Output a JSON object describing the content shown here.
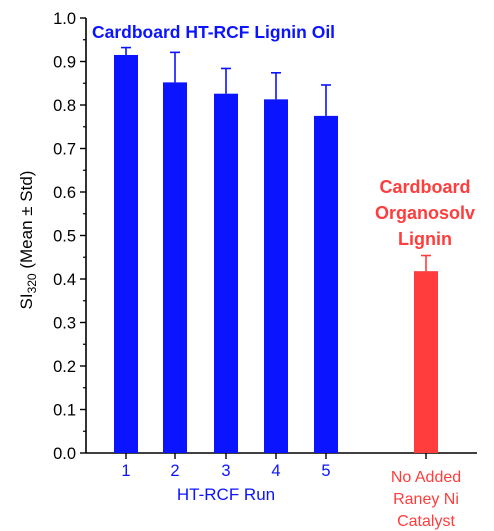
{
  "chart_data": {
    "type": "bar",
    "ylabel_main": "SI",
    "ylabel_sub": "320",
    "ylabel_rest": " (Mean ± Std)",
    "ylim": [
      0.0,
      1.0
    ],
    "yticks": [
      "0.0",
      "0.1",
      "0.2",
      "0.3",
      "0.4",
      "0.5",
      "0.6",
      "0.7",
      "0.8",
      "0.9",
      "1.0"
    ],
    "grid": false,
    "xlabel": "HT-RCF Run",
    "series": [
      {
        "name": "Cardboard HT-RCF Lignin Oil",
        "color": "#0a14ff",
        "categories": [
          "1",
          "2",
          "3",
          "4",
          "5"
        ],
        "values": [
          0.915,
          0.852,
          0.826,
          0.813,
          0.775
        ],
        "errors": [
          0.017,
          0.069,
          0.058,
          0.061,
          0.071
        ]
      },
      {
        "name_lines": [
          "Cardboard",
          "Organosolv",
          "Lignin"
        ],
        "color": "#ff3d3d",
        "category_lines": [
          "No Added",
          "Raney Ni",
          "Catalyst"
        ],
        "values": [
          0.418
        ],
        "errors": [
          0.036
        ]
      }
    ]
  }
}
